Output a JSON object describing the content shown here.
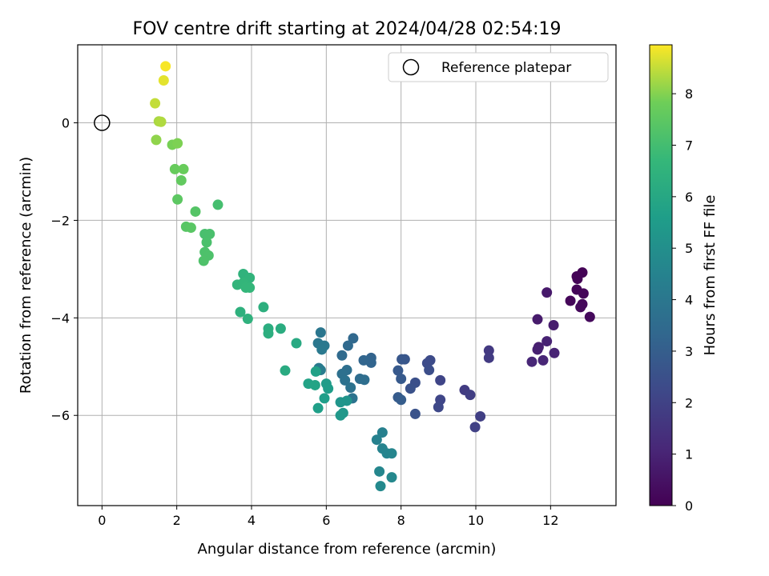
{
  "chart_data": {
    "type": "scatter",
    "title": "FOV centre drift starting at 2024/04/28 02:54:19",
    "xlabel": "Angular distance from reference (arcmin)",
    "ylabel": "Rotation from reference (arcmin)",
    "xlim": [
      -0.65,
      13.75
    ],
    "ylim": [
      -7.85,
      1.6
    ],
    "xticks": [
      0,
      2,
      4,
      6,
      8,
      10,
      12
    ],
    "yticks": [
      -6,
      -4,
      -2,
      0
    ],
    "grid": true,
    "legend": {
      "position": "top-right",
      "entries": [
        "Reference platepar"
      ]
    },
    "reference_point": {
      "x": 0,
      "y": 0
    },
    "colorbar": {
      "label": "Hours from first FF file",
      "range": [
        0,
        8.95
      ],
      "ticks": [
        0,
        1,
        2,
        3,
        4,
        5,
        6,
        7,
        8
      ],
      "colormap": "viridis"
    },
    "points": [
      {
        "x": 12.85,
        "y": -3.07,
        "h": 0.05
      },
      {
        "x": 12.7,
        "y": -3.15,
        "h": 0.08
      },
      {
        "x": 12.72,
        "y": -3.2,
        "h": 0.1
      },
      {
        "x": 12.7,
        "y": -3.42,
        "h": 0.12
      },
      {
        "x": 12.88,
        "y": -3.5,
        "h": 0.15
      },
      {
        "x": 12.53,
        "y": -3.65,
        "h": 0.17
      },
      {
        "x": 12.85,
        "y": -3.72,
        "h": 0.2
      },
      {
        "x": 12.8,
        "y": -3.78,
        "h": 0.22
      },
      {
        "x": 13.05,
        "y": -3.98,
        "h": 0.25
      },
      {
        "x": 11.9,
        "y": -3.48,
        "h": 0.7
      },
      {
        "x": 11.65,
        "y": -4.03,
        "h": 0.75
      },
      {
        "x": 12.08,
        "y": -4.15,
        "h": 0.8
      },
      {
        "x": 11.68,
        "y": -4.6,
        "h": 0.85
      },
      {
        "x": 11.65,
        "y": -4.65,
        "h": 0.9
      },
      {
        "x": 11.9,
        "y": -4.48,
        "h": 0.95
      },
      {
        "x": 12.1,
        "y": -4.72,
        "h": 1.0
      },
      {
        "x": 11.8,
        "y": -4.87,
        "h": 1.05
      },
      {
        "x": 11.5,
        "y": -4.9,
        "h": 1.1
      },
      {
        "x": 10.35,
        "y": -4.67,
        "h": 1.7
      },
      {
        "x": 10.35,
        "y": -4.82,
        "h": 1.75
      },
      {
        "x": 9.7,
        "y": -5.48,
        "h": 1.8
      },
      {
        "x": 9.85,
        "y": -5.58,
        "h": 1.85
      },
      {
        "x": 10.12,
        "y": -6.02,
        "h": 1.9
      },
      {
        "x": 9.98,
        "y": -6.24,
        "h": 1.95
      },
      {
        "x": 9.05,
        "y": -5.28,
        "h": 2.1
      },
      {
        "x": 9.05,
        "y": -5.68,
        "h": 2.15
      },
      {
        "x": 9.0,
        "y": -5.83,
        "h": 2.2
      },
      {
        "x": 8.78,
        "y": -4.87,
        "h": 2.3
      },
      {
        "x": 8.7,
        "y": -4.93,
        "h": 2.35
      },
      {
        "x": 8.75,
        "y": -5.07,
        "h": 2.4
      },
      {
        "x": 8.38,
        "y": -5.33,
        "h": 2.5
      },
      {
        "x": 8.25,
        "y": -5.45,
        "h": 2.55
      },
      {
        "x": 8.38,
        "y": -5.97,
        "h": 2.6
      },
      {
        "x": 8.1,
        "y": -4.85,
        "h": 2.7
      },
      {
        "x": 8.02,
        "y": -4.85,
        "h": 2.75
      },
      {
        "x": 7.92,
        "y": -5.08,
        "h": 2.8
      },
      {
        "x": 8.0,
        "y": -5.25,
        "h": 2.85
      },
      {
        "x": 7.92,
        "y": -5.63,
        "h": 2.9
      },
      {
        "x": 8.0,
        "y": -5.68,
        "h": 2.95
      },
      {
        "x": 7.2,
        "y": -4.82,
        "h": 3.2
      },
      {
        "x": 7.2,
        "y": -4.92,
        "h": 3.25
      },
      {
        "x": 7.0,
        "y": -4.87,
        "h": 3.3
      },
      {
        "x": 6.72,
        "y": -4.42,
        "h": 3.4
      },
      {
        "x": 6.58,
        "y": -4.57,
        "h": 3.45
      },
      {
        "x": 6.42,
        "y": -4.77,
        "h": 3.5
      },
      {
        "x": 6.9,
        "y": -5.25,
        "h": 3.55
      },
      {
        "x": 7.02,
        "y": -5.27,
        "h": 3.6
      },
      {
        "x": 6.55,
        "y": -5.07,
        "h": 3.65
      },
      {
        "x": 6.42,
        "y": -5.15,
        "h": 3.7
      },
      {
        "x": 6.5,
        "y": -5.28,
        "h": 3.75
      },
      {
        "x": 6.65,
        "y": -5.43,
        "h": 3.8
      },
      {
        "x": 6.7,
        "y": -5.65,
        "h": 3.85
      },
      {
        "x": 5.85,
        "y": -4.3,
        "h": 3.95
      },
      {
        "x": 5.78,
        "y": -4.52,
        "h": 4.0
      },
      {
        "x": 5.95,
        "y": -4.57,
        "h": 4.05
      },
      {
        "x": 5.88,
        "y": -4.65,
        "h": 4.1
      },
      {
        "x": 5.8,
        "y": -5.03,
        "h": 4.15
      },
      {
        "x": 5.85,
        "y": -5.07,
        "h": 4.2
      },
      {
        "x": 7.5,
        "y": -6.35,
        "h": 4.4
      },
      {
        "x": 7.35,
        "y": -6.5,
        "h": 4.45
      },
      {
        "x": 7.5,
        "y": -6.68,
        "h": 4.5
      },
      {
        "x": 7.62,
        "y": -6.78,
        "h": 4.55
      },
      {
        "x": 7.75,
        "y": -6.78,
        "h": 4.6
      },
      {
        "x": 7.42,
        "y": -7.15,
        "h": 4.65
      },
      {
        "x": 7.75,
        "y": -7.27,
        "h": 4.7
      },
      {
        "x": 7.45,
        "y": -7.45,
        "h": 4.75
      },
      {
        "x": 6.55,
        "y": -5.7,
        "h": 5.2
      },
      {
        "x": 6.38,
        "y": -5.73,
        "h": 5.25
      },
      {
        "x": 6.45,
        "y": -5.95,
        "h": 5.3
      },
      {
        "x": 6.38,
        "y": -6.0,
        "h": 5.35
      },
      {
        "x": 6.0,
        "y": -5.35,
        "h": 5.5
      },
      {
        "x": 6.05,
        "y": -5.45,
        "h": 5.55
      },
      {
        "x": 5.95,
        "y": -5.65,
        "h": 5.6
      },
      {
        "x": 5.78,
        "y": -5.85,
        "h": 5.65
      },
      {
        "x": 5.72,
        "y": -5.1,
        "h": 5.75
      },
      {
        "x": 5.52,
        "y": -5.35,
        "h": 5.8
      },
      {
        "x": 5.7,
        "y": -5.38,
        "h": 5.85
      },
      {
        "x": 5.2,
        "y": -4.52,
        "h": 6.1
      },
      {
        "x": 4.9,
        "y": -5.08,
        "h": 6.15
      },
      {
        "x": 4.78,
        "y": -4.22,
        "h": 6.2
      },
      {
        "x": 4.45,
        "y": -4.22,
        "h": 6.25
      },
      {
        "x": 4.45,
        "y": -4.32,
        "h": 6.3
      },
      {
        "x": 4.32,
        "y": -3.78,
        "h": 6.35
      },
      {
        "x": 3.7,
        "y": -3.88,
        "h": 6.4
      },
      {
        "x": 3.9,
        "y": -4.02,
        "h": 6.45
      },
      {
        "x": 3.78,
        "y": -3.1,
        "h": 6.5
      },
      {
        "x": 3.95,
        "y": -3.18,
        "h": 6.55
      },
      {
        "x": 3.62,
        "y": -3.32,
        "h": 6.6
      },
      {
        "x": 3.78,
        "y": -3.28,
        "h": 6.62
      },
      {
        "x": 3.85,
        "y": -3.38,
        "h": 6.65
      },
      {
        "x": 3.95,
        "y": -3.38,
        "h": 6.67
      },
      {
        "x": 3.1,
        "y": -1.68,
        "h": 7.05
      },
      {
        "x": 2.75,
        "y": -2.28,
        "h": 7.1
      },
      {
        "x": 2.88,
        "y": -2.28,
        "h": 7.12
      },
      {
        "x": 2.8,
        "y": -2.45,
        "h": 7.15
      },
      {
        "x": 2.75,
        "y": -2.65,
        "h": 7.18
      },
      {
        "x": 2.85,
        "y": -2.72,
        "h": 7.2
      },
      {
        "x": 2.72,
        "y": -2.83,
        "h": 7.22
      },
      {
        "x": 2.5,
        "y": -1.82,
        "h": 7.35
      },
      {
        "x": 2.25,
        "y": -2.13,
        "h": 7.4
      },
      {
        "x": 2.38,
        "y": -2.15,
        "h": 7.42
      },
      {
        "x": 2.02,
        "y": -1.57,
        "h": 7.5
      },
      {
        "x": 2.12,
        "y": -1.18,
        "h": 7.6
      },
      {
        "x": 1.95,
        "y": -0.95,
        "h": 7.7
      },
      {
        "x": 2.18,
        "y": -0.95,
        "h": 7.72
      },
      {
        "x": 1.88,
        "y": -0.45,
        "h": 7.9
      },
      {
        "x": 2.02,
        "y": -0.42,
        "h": 7.95
      },
      {
        "x": 1.45,
        "y": -0.35,
        "h": 8.1
      },
      {
        "x": 1.52,
        "y": 0.03,
        "h": 8.3
      },
      {
        "x": 1.58,
        "y": 0.02,
        "h": 8.35
      },
      {
        "x": 1.42,
        "y": 0.4,
        "h": 8.5
      },
      {
        "x": 1.65,
        "y": 0.87,
        "h": 8.75
      },
      {
        "x": 1.7,
        "y": 1.16,
        "h": 8.9
      }
    ]
  }
}
